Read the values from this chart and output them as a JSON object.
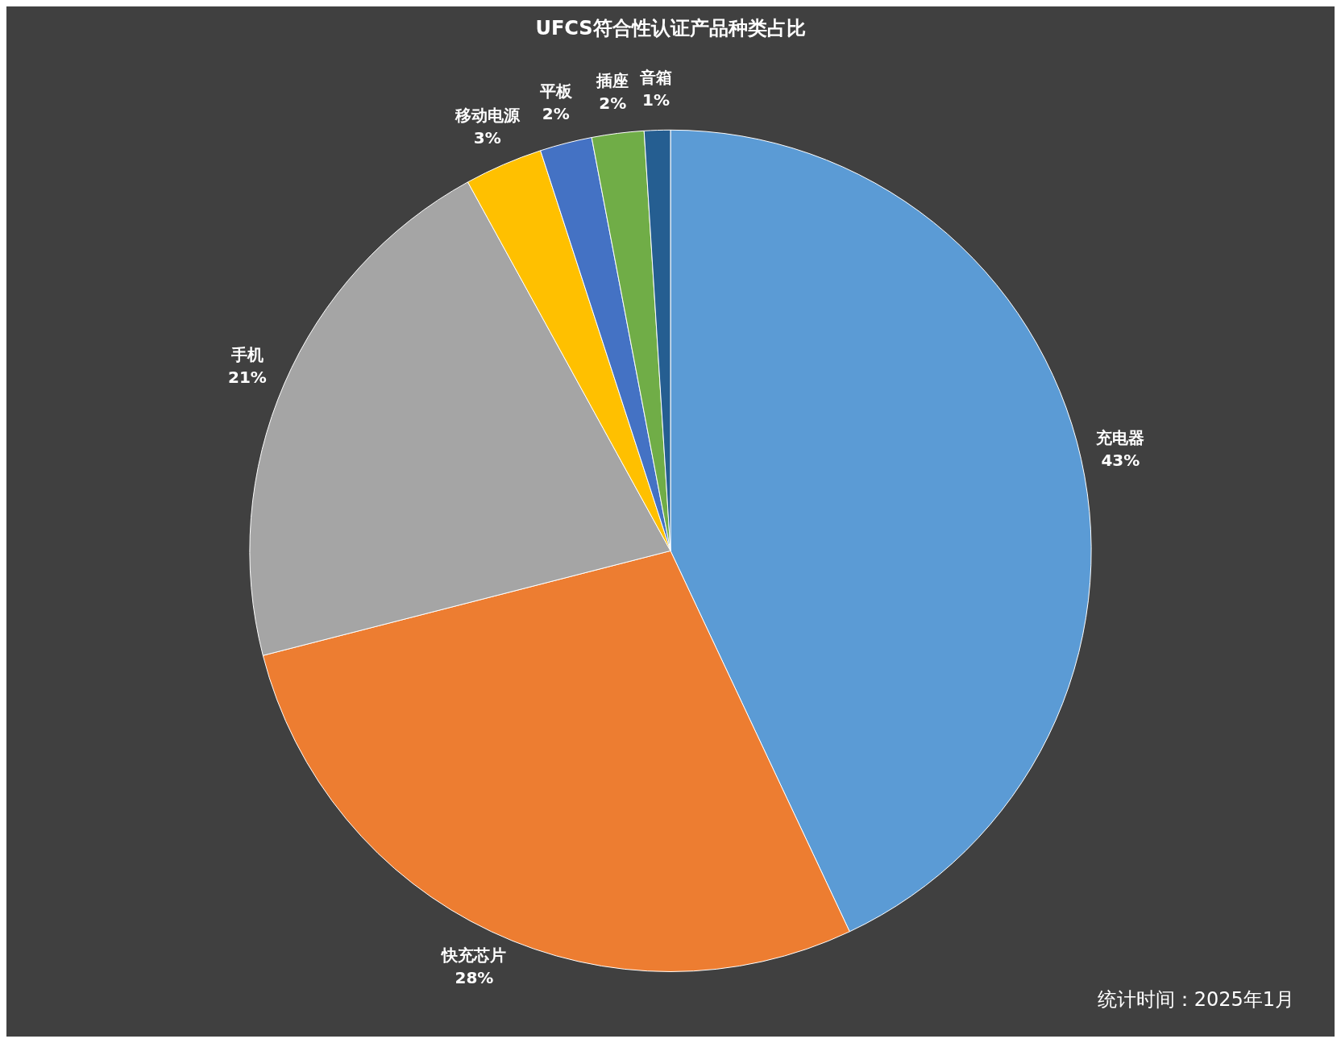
{
  "chart_data": {
    "type": "pie",
    "title": "UFCS符合性认证产品种类占比",
    "categories": [
      "充电器",
      "快充芯片",
      "手机",
      "移动电源",
      "平板",
      "插座",
      "音箱"
    ],
    "values": [
      43,
      28,
      21,
      3,
      2,
      2,
      1
    ],
    "colors": [
      "#5b9bd5",
      "#ed7d31",
      "#a5a5a5",
      "#ffc000",
      "#4472c4",
      "#70ad47",
      "#255e91"
    ],
    "value_labels": [
      "43%",
      "28%",
      "21%",
      "3%",
      "2%",
      "2%",
      "1%"
    ],
    "legend": false,
    "annotations": [
      "统计时间：2025年1月"
    ]
  }
}
